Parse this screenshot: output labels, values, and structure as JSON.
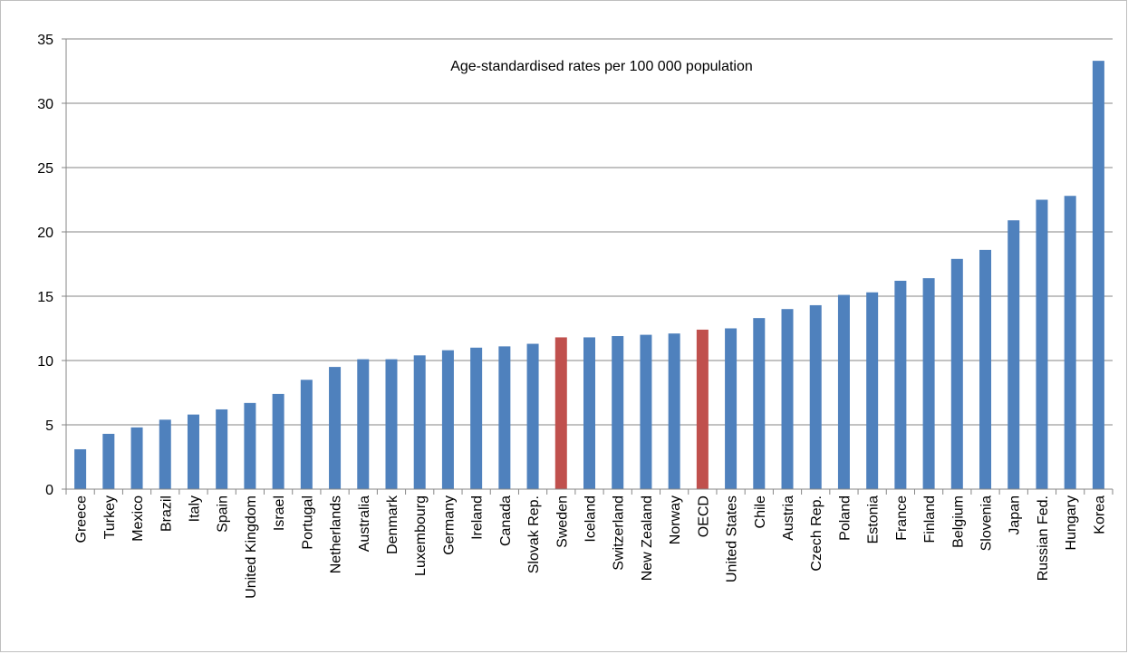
{
  "chart_data": {
    "type": "bar",
    "title": "",
    "annotation": "Age-standardised rates per 100 000 population",
    "xlabel": "",
    "ylabel": "",
    "ylim": [
      0,
      35
    ],
    "yticks": [
      0,
      5,
      10,
      15,
      20,
      25,
      30,
      35
    ],
    "grid": "horizontal",
    "legend": "none",
    "colors": {
      "default": "#4f81bd",
      "highlight": "#c0504d"
    },
    "highlighted": [
      "Sweden",
      "OECD"
    ],
    "categories": [
      "Greece",
      "Turkey",
      "Mexico",
      "Brazil",
      "Italy",
      "Spain",
      "United Kingdom",
      "Israel",
      "Portugal",
      "Netherlands",
      "Australia",
      "Denmark",
      "Luxembourg",
      "Germany",
      "Ireland",
      "Canada",
      "Slovak Rep.",
      "Sweden",
      "Iceland",
      "Switzerland",
      "New Zealand",
      "Norway",
      "OECD",
      "United States",
      "Chile",
      "Austria",
      "Czech Rep.",
      "Poland",
      "Estonia",
      "France",
      "Finland",
      "Belgium",
      "Slovenia",
      "Japan",
      "Russian Fed.",
      "Hungary",
      "Korea"
    ],
    "values": [
      3.1,
      4.3,
      4.8,
      5.4,
      5.8,
      6.2,
      6.7,
      7.4,
      8.5,
      9.5,
      10.1,
      10.1,
      10.4,
      10.8,
      11.0,
      11.1,
      11.3,
      11.8,
      11.8,
      11.9,
      12.0,
      12.1,
      12.4,
      12.5,
      13.3,
      14.0,
      14.3,
      15.1,
      15.3,
      16.2,
      16.4,
      17.9,
      18.6,
      20.9,
      22.5,
      22.8,
      33.3
    ]
  }
}
